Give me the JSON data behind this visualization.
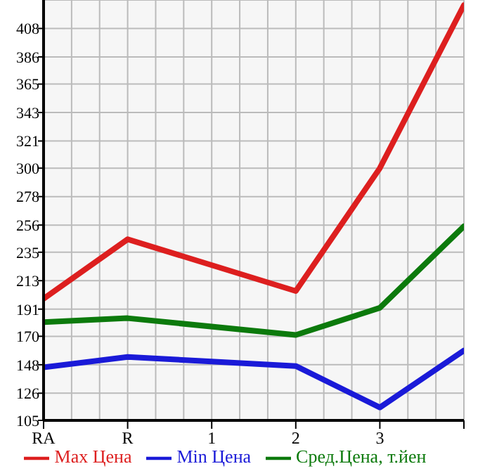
{
  "chart_data": {
    "type": "line",
    "categories": [
      "RA",
      "R",
      "1",
      "2",
      "3",
      null
    ],
    "series": [
      {
        "name": "Max Цена",
        "color": "#dd1f1f",
        "values": [
          199,
          245,
          null,
          205,
          300,
          426
        ]
      },
      {
        "name": "Min Цена",
        "color": "#1a1ad8",
        "values": [
          146,
          154,
          null,
          147,
          115,
          159
        ]
      },
      {
        "name": "Сред.Цена, т.йен",
        "color": "#0c7a0c",
        "values": [
          181,
          184,
          null,
          171,
          192,
          255
        ]
      }
    ],
    "ylim": [
      105,
      430
    ],
    "yticks": [
      105,
      126,
      148,
      170,
      191,
      213,
      235,
      256,
      278,
      300,
      321,
      343,
      365,
      386,
      408
    ],
    "grid": true,
    "legend": "bottom",
    "marker": "none",
    "line_style": "solid"
  }
}
